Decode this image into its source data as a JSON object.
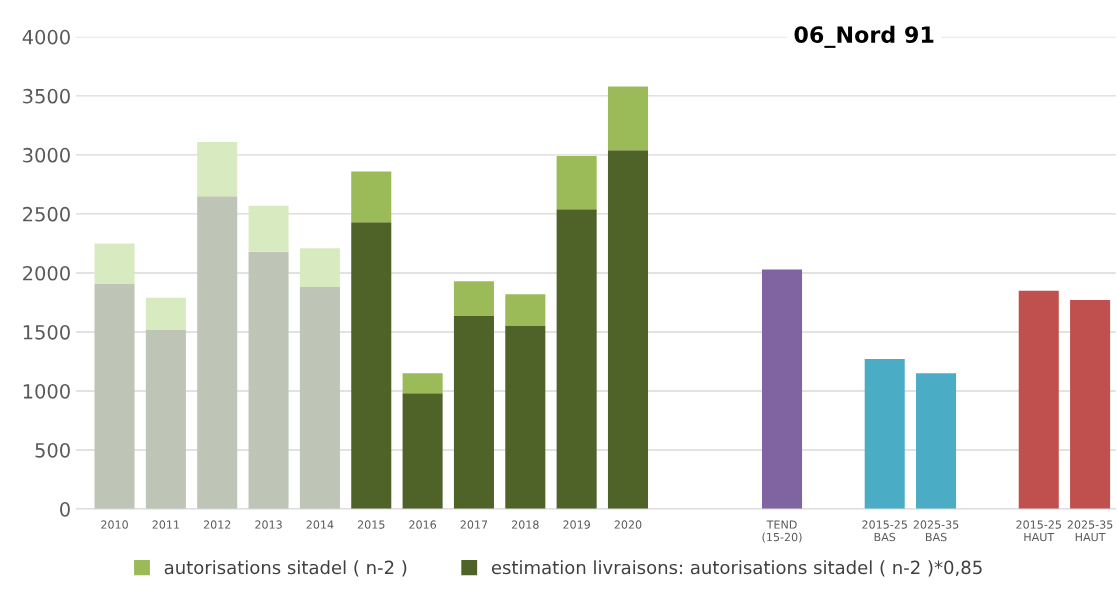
{
  "chart_data": {
    "type": "bar",
    "title": "06_Nord 91",
    "stacked": true,
    "categories": [
      "2010",
      "2011",
      "2012",
      "2013",
      "2014",
      "2015",
      "2016",
      "2017",
      "2018",
      "2019",
      "2020",
      null,
      null,
      "TEND\n(15-20)",
      null,
      "2015-25\nBAS",
      "2025-35\nBAS",
      null,
      "2015-25\nHAUT",
      "2025-35\nHAUT"
    ],
    "series": [
      {
        "name": "estimation livraisons: autorisations sitadel ( n-2 )*0,85",
        "color": "#4f6228",
        "colors": [
          "#bfc5b6",
          "#bfc5b6",
          "#bfc5b6",
          "#bfc5b6",
          "#bfc5b6",
          "#4f6228",
          "#4f6228",
          "#4f6228",
          "#4f6228",
          "#4f6228",
          "#4f6228",
          null,
          null,
          null,
          null,
          null,
          null,
          null,
          null,
          null
        ],
        "values": [
          1910,
          1520,
          2650,
          2180,
          1880,
          2430,
          980,
          1640,
          1550,
          2540,
          3040,
          null,
          null,
          null,
          null,
          null,
          null,
          null,
          null,
          null
        ]
      },
      {
        "name": "autorisations sitadel ( n-2 )",
        "color": "#9bbb59",
        "colors": [
          "#d8ebc0",
          "#d8ebc0",
          "#d8ebc0",
          "#d8ebc0",
          "#d8ebc0",
          "#9bbb59",
          "#9bbb59",
          "#9bbb59",
          "#9bbb59",
          "#9bbb59",
          "#9bbb59",
          null,
          null,
          null,
          null,
          null,
          null,
          null,
          null,
          null
        ],
        "values": [
          340,
          270,
          460,
          390,
          330,
          430,
          170,
          290,
          270,
          450,
          540,
          null,
          null,
          null,
          null,
          null,
          null,
          null,
          null,
          null
        ]
      },
      {
        "colors": [
          null,
          null,
          null,
          null,
          null,
          null,
          null,
          null,
          null,
          null,
          null,
          null,
          null,
          "#8064a2",
          null,
          "#4bacc6",
          "#4bacc6",
          null,
          "#c0504d",
          "#c0504d"
        ],
        "values": [
          null,
          null,
          null,
          null,
          null,
          null,
          null,
          null,
          null,
          null,
          null,
          null,
          null,
          2030,
          null,
          1270,
          1150,
          null,
          1850,
          1770
        ]
      }
    ],
    "ylim": [
      0,
      4000
    ],
    "yticks": [
      0,
      500,
      1000,
      1500,
      2000,
      2500,
      3000,
      3500,
      4000
    ],
    "grid": "y",
    "legend": "bottom"
  }
}
